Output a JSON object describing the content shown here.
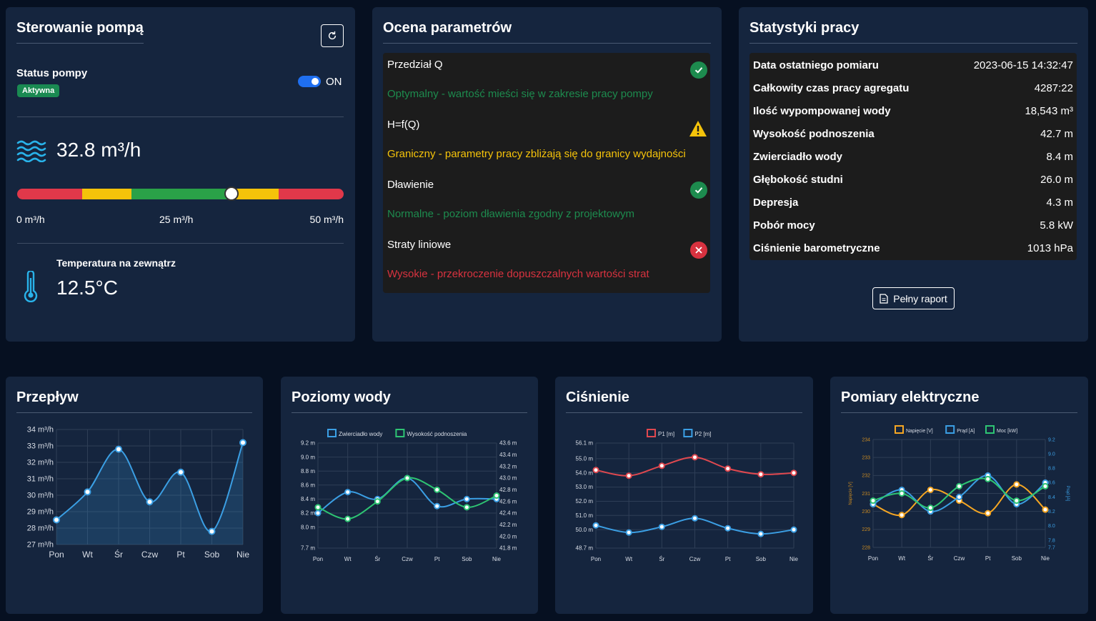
{
  "pump": {
    "title": "Sterowanie pompą",
    "status_label": "Status pompy",
    "status_badge": "Aktywna",
    "toggle_label": "ON",
    "flow_value": "32.8 m³/h",
    "flow_fraction": 0.656,
    "gauge_min": "0 m³/h",
    "gauge_mid": "25 m³/h",
    "gauge_max": "50 m³/h",
    "temp_label": "Temperatura na zewnątrz",
    "temp_value": "12.5°C",
    "colors": {
      "red": "#e0384a",
      "yellow": "#f5c30a",
      "green": "#2aa148",
      "accent": "#1f6ff0"
    }
  },
  "params": {
    "title": "Ocena parametrów",
    "items": [
      {
        "name": "Przedział Q",
        "desc": "Optymalny - wartość mieści się w zakresie pracy pompy",
        "status": "ok",
        "color": "#1d8b4e"
      },
      {
        "name": "H=f(Q)",
        "desc": "Graniczny - parametry pracy zbliżają się do granicy wydajności",
        "status": "warn",
        "color": "#f5c30a"
      },
      {
        "name": "Dławienie",
        "desc": "Normalne - poziom dławienia zgodny z projektowym",
        "status": "ok",
        "color": "#1d8b4e"
      },
      {
        "name": "Straty liniowe",
        "desc": "Wysokie - przekroczenie dopuszczalnych wartości strat",
        "status": "err",
        "color": "#d8323f"
      }
    ]
  },
  "stats": {
    "title": "Statystyki pracy",
    "rows": [
      {
        "k": "Data ostatniego pomiaru",
        "v": "2023-06-15 14:32:47"
      },
      {
        "k": "Całkowity czas pracy agregatu",
        "v": "4287:22"
      },
      {
        "k": "Ilość wypompowanej wody",
        "v": "18,543 m³"
      },
      {
        "k": "Wysokość podnoszenia",
        "v": "42.7 m"
      },
      {
        "k": "Zwierciadło wody",
        "v": "8.4 m"
      },
      {
        "k": "Głębokość studni",
        "v": "26.0 m"
      },
      {
        "k": "Depresja",
        "v": "4.3 m"
      },
      {
        "k": "Pobór mocy",
        "v": "5.8 kW"
      },
      {
        "k": "Ciśnienie barometryczne",
        "v": "1013 hPa"
      }
    ],
    "report_label": "Pełny raport"
  },
  "chart_data": [
    {
      "type": "area",
      "title": "Przepływ",
      "categories": [
        "Pon",
        "Wt",
        "Śr",
        "Czw",
        "Pt",
        "Sob",
        "Nie"
      ],
      "series": [
        {
          "name": "Przepływ",
          "values": [
            28.5,
            30.2,
            32.8,
            29.6,
            31.4,
            27.8,
            33.2
          ],
          "color": "#3b9fe4"
        }
      ],
      "ylim": [
        27,
        34
      ],
      "yticks": [
        "27 m³/h",
        "28 m³/h",
        "29 m³/h",
        "30 m³/h",
        "31 m³/h",
        "32 m³/h",
        "33 m³/h",
        "34 m³/h"
      ]
    },
    {
      "type": "line",
      "title": "Poziomy wody",
      "categories": [
        "Pon",
        "Wt",
        "Śr",
        "Czw",
        "Pt",
        "Sob",
        "Nie"
      ],
      "series": [
        {
          "name": "Zwierciadło wody",
          "values": [
            8.2,
            8.5,
            8.4,
            8.7,
            8.3,
            8.4,
            8.4
          ],
          "color": "#3b9fe4",
          "axis": "left"
        },
        {
          "name": "Wysokość podnoszenia",
          "values": [
            42.5,
            42.3,
            42.6,
            43.0,
            42.8,
            42.5,
            42.7
          ],
          "color": "#2ec473",
          "axis": "right"
        }
      ],
      "ylim_left": [
        7.7,
        9.2
      ],
      "ylim_right": [
        41.8,
        43.6
      ],
      "yticks_left": [
        "7.7 m",
        "8.0 m",
        "8.2 m",
        "8.4 m",
        "8.6 m",
        "8.8 m",
        "9.0 m",
        "9.2 m"
      ],
      "yticks_right": [
        "41.8 m",
        "42.0 m",
        "42.2 m",
        "42.4 m",
        "42.6 m",
        "42.8 m",
        "43.0 m",
        "43.2 m",
        "43.4 m",
        "43.6 m"
      ]
    },
    {
      "type": "line",
      "title": "Ciśnienie",
      "categories": [
        "Pon",
        "Wt",
        "Śr",
        "Czw",
        "Pt",
        "Sob",
        "Nie"
      ],
      "series": [
        {
          "name": "P1 [m]",
          "values": [
            54.2,
            53.8,
            54.5,
            55.1,
            54.3,
            53.9,
            54.0
          ],
          "color": "#e0484f"
        },
        {
          "name": "P2 [m]",
          "values": [
            50.3,
            49.8,
            50.2,
            50.8,
            50.1,
            49.7,
            50.0
          ],
          "color": "#3b9fe4"
        }
      ],
      "ylim": [
        48.7,
        56.1
      ],
      "yticks": [
        "48.7 m",
        "50.0 m",
        "51.0 m",
        "52.0 m",
        "53.0 m",
        "54.0 m",
        "55.0 m",
        "56.1 m"
      ]
    },
    {
      "type": "line",
      "title": "Pomiary elektryczne",
      "categories": [
        "Pon",
        "Wt",
        "Śr",
        "Czw",
        "Pt",
        "Sob",
        "Nie"
      ],
      "series": [
        {
          "name": "Napięcie [V]",
          "values": [
            230.4,
            229.8,
            231.2,
            230.6,
            229.9,
            231.5,
            230.1
          ],
          "color": "#f5a623",
          "axis": "left"
        },
        {
          "name": "Prąd [A]",
          "values": [
            8.3,
            8.5,
            8.2,
            8.4,
            8.7,
            8.3,
            8.6
          ],
          "color": "#3b9fe4",
          "axis": "right"
        },
        {
          "name": "Moc [kW]",
          "values": [
            8.35,
            8.45,
            8.25,
            8.55,
            8.65,
            8.35,
            8.55
          ],
          "color": "#2ec473",
          "axis": "right"
        }
      ],
      "ylabel_left": "Napięcie [V]",
      "ylabel_right": "Prąd [A]",
      "ylim_left": [
        228,
        234
      ],
      "ylim_right": [
        7.7,
        9.2
      ],
      "yticks_left": [
        "228",
        "229",
        "230",
        "231",
        "232",
        "233",
        "234"
      ],
      "yticks_right": [
        "7.7",
        "7.8",
        "8.0",
        "8.2",
        "8.4",
        "8.6",
        "8.8",
        "9.0",
        "9.2"
      ]
    }
  ]
}
